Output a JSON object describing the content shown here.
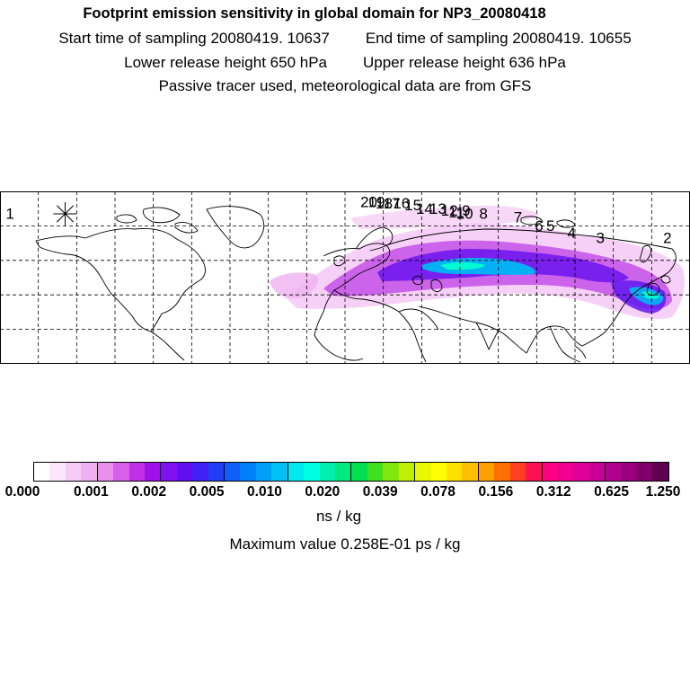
{
  "header": {
    "title": "Footprint emission sensitivity in global domain for NP3_20080418",
    "start_time": "Start time of sampling 20080419. 10637",
    "end_time": "End time of sampling 20080419. 10655",
    "lower_height": "Lower release height  650 hPa",
    "upper_height": "Upper release height  636 hPa",
    "tracer_note": "Passive tracer used, meteorological data are from GFS"
  },
  "map": {
    "projection": "lat-lon global",
    "lon_range": [
      -180,
      180
    ],
    "lat_range": [
      -10,
      90
    ],
    "gridlines": true,
    "trajectory_labels": [
      {
        "text": "20",
        "lon": 8,
        "lat": 81
      },
      {
        "text": "19",
        "lon": 12,
        "lat": 81
      },
      {
        "text": "18",
        "lon": 16,
        "lat": 80
      },
      {
        "text": "17",
        "lon": 20,
        "lat": 80
      },
      {
        "text": "16",
        "lon": 25,
        "lat": 80
      },
      {
        "text": "15",
        "lon": 31,
        "lat": 79
      },
      {
        "text": "14",
        "lon": 37,
        "lat": 77
      },
      {
        "text": "13",
        "lon": 44,
        "lat": 77
      },
      {
        "text": "12",
        "lon": 50,
        "lat": 76
      },
      {
        "text": "11",
        "lon": 54,
        "lat": 75
      },
      {
        "text": "10",
        "lon": 58,
        "lat": 74
      },
      {
        "text": "9",
        "lon": 61,
        "lat": 76
      },
      {
        "text": "8",
        "lon": 70,
        "lat": 74
      },
      {
        "text": "7",
        "lon": 88,
        "lat": 72
      },
      {
        "text": "6",
        "lon": 99,
        "lat": 67
      },
      {
        "text": "5",
        "lon": 105,
        "lat": 67
      },
      {
        "text": "4",
        "lon": 116,
        "lat": 63
      },
      {
        "text": "3",
        "lon": 131,
        "lat": 60
      },
      {
        "text": "2",
        "lon": 166,
        "lat": 60
      },
      {
        "text": "1",
        "lon": -177,
        "lat": 74
      }
    ],
    "release_site": {
      "lon": -146,
      "lat": 77
    }
  },
  "colorbar": {
    "colors": [
      "#ffffff",
      "#fbe6fb",
      "#f6ccf6",
      "#f0b0f0",
      "#e890ec",
      "#d860e8",
      "#c030e6",
      "#a010e8",
      "#8010ee",
      "#6010f0",
      "#4020f4",
      "#2040f8",
      "#1060f8",
      "#0080f8",
      "#00a0f8",
      "#00c0f4",
      "#00e8f0",
      "#00ffe0",
      "#00f0b0",
      "#00e880",
      "#00e050",
      "#40e020",
      "#80e810",
      "#c0f000",
      "#e8f800",
      "#ffff00",
      "#ffe000",
      "#ffc000",
      "#ffa000",
      "#ff7000",
      "#ff4020",
      "#ff1050",
      "#ff0080",
      "#f00090",
      "#e00098",
      "#c80098",
      "#b00090",
      "#980080",
      "#800068",
      "#600050"
    ],
    "tick_labels": [
      "0.000",
      "0.001",
      "0.002",
      "0.005",
      "0.010",
      "0.020",
      "0.039",
      "0.078",
      "0.156",
      "0.312",
      "0.625",
      "1.250"
    ],
    "unit": "ns / kg",
    "max_value_text": "Maximum value  0.258E-01 ps / kg"
  },
  "palette": {
    "plume_low": "#f0b8f0",
    "plume_mid": "#c040e8",
    "plume_high": "#6010f0",
    "plume_core": "#00c0f4",
    "plume_peak": "#00ffd0"
  }
}
